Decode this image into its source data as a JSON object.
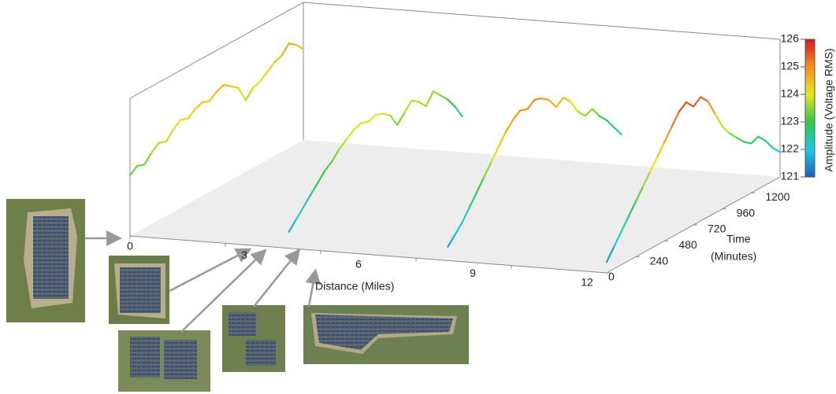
{
  "chart_data": {
    "type": "line3d",
    "xlabel": "Distance (Miles)",
    "ylabel": [
      "Time",
      "(Minutes)"
    ],
    "zlabel": "Amplitude (Voltage RMS)",
    "xlim": [
      0,
      15
    ],
    "xticks": [
      0,
      3,
      6,
      9,
      12
    ],
    "ylim": [
      0,
      1440
    ],
    "yticks": [
      0,
      240,
      480,
      720,
      960,
      1200
    ],
    "zlim": [
      121,
      126
    ],
    "zticks": [
      121,
      122,
      123,
      124,
      125,
      126
    ],
    "colormap": [
      "#1f5fbf",
      "#1ec8e6",
      "#33c84a",
      "#e6e619",
      "#f5901e",
      "#d7191c"
    ],
    "x": [
      0,
      60,
      120,
      180,
      240,
      300,
      360,
      420,
      480,
      540,
      600,
      660,
      720,
      780,
      840,
      900,
      960,
      1020,
      1080,
      1140,
      1200,
      1260,
      1320,
      1380,
      1440
    ],
    "series": [
      {
        "distance": 0,
        "values": [
          123.2,
          123.4,
          123.3,
          123.6,
          123.8,
          123.7,
          124.0,
          124.2,
          124.1,
          124.3,
          124.4,
          124.3,
          124.5,
          124.6,
          124.4,
          124.2,
          123.6,
          123.9,
          124.0,
          124.2,
          124.4,
          124.5,
          124.8,
          124.6,
          124.3
        ]
      },
      {
        "distance": 5,
        "values": [
          121.6,
          121.9,
          122.2,
          122.5,
          122.8,
          123.1,
          123.3,
          123.6,
          123.8,
          124.0,
          124.1,
          124.0,
          124.1,
          124.0,
          123.8,
          123.3,
          123.6,
          123.9,
          123.7,
          123.4,
          123.8,
          123.5,
          123.2,
          122.8,
          122.3
        ]
      },
      {
        "distance": 10,
        "values": [
          121.5,
          121.8,
          122.1,
          122.5,
          122.9,
          123.3,
          123.7,
          124.1,
          124.5,
          124.8,
          125.0,
          124.9,
          125.1,
          125.0,
          124.8,
          124.4,
          124.6,
          124.3,
          123.8,
          123.5,
          123.6,
          123.2,
          122.9,
          122.5,
          122.1
        ]
      },
      {
        "distance": 15,
        "values": [
          121.4,
          121.8,
          122.2,
          122.6,
          123.0,
          123.4,
          123.8,
          124.2,
          124.6,
          125.0,
          125.4,
          125.6,
          125.3,
          125.5,
          125.2,
          124.6,
          124.0,
          123.6,
          123.3,
          123.0,
          122.8,
          122.9,
          122.6,
          122.2,
          121.9
        ]
      }
    ]
  }
}
